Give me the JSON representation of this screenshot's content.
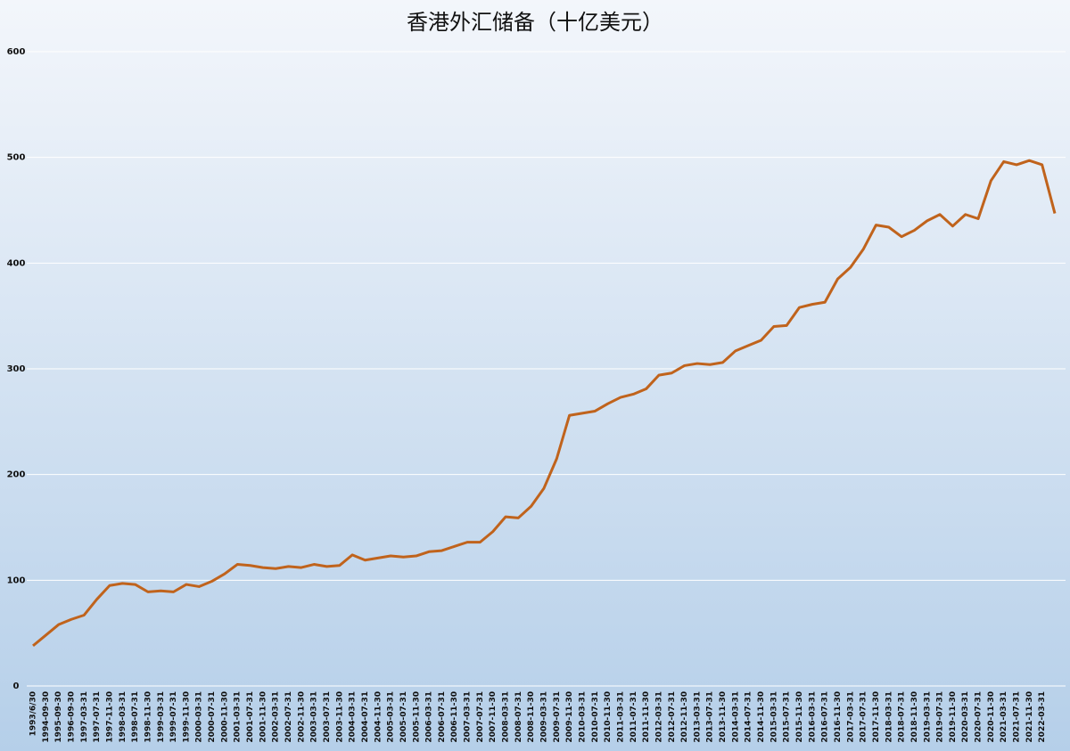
{
  "chart_data": {
    "type": "line",
    "title": "香港外汇储备（十亿美元）",
    "categories": [
      "1993/6/30",
      "1994-09-30",
      "1995-09-30",
      "1996-09-30",
      "1997-03-31",
      "1997-07-31",
      "1997-11-30",
      "1998-03-31",
      "1998-07-31",
      "1998-11-30",
      "1999-03-31",
      "1999-07-31",
      "1999-11-30",
      "2000-03-31",
      "2000-07-31",
      "2000-11-30",
      "2001-03-31",
      "2001-07-31",
      "2001-11-30",
      "2002-03-31",
      "2002-07-31",
      "2002-11-30",
      "2003-03-31",
      "2003-07-31",
      "2003-11-30",
      "2004-03-31",
      "2004-07-31",
      "2004-11-30",
      "2005-03-31",
      "2005-07-31",
      "2005-11-30",
      "2006-03-31",
      "2006-07-31",
      "2006-11-30",
      "2007-03-31",
      "2007-07-31",
      "2007-11-30",
      "2008-03-31",
      "2008-07-31",
      "2008-11-30",
      "2009-03-31",
      "2009-07-31",
      "2009-11-30",
      "2010-03-31",
      "2010-07-31",
      "2010-11-30",
      "2011-03-31",
      "2011-07-31",
      "2011-11-30",
      "2012-03-31",
      "2012-07-31",
      "2012-11-30",
      "2013-03-31",
      "2013-07-31",
      "2013-11-30",
      "2014-03-31",
      "2014-07-31",
      "2014-11-30",
      "2015-03-31",
      "2015-07-31",
      "2015-11-30",
      "2016-03-31",
      "2016-07-31",
      "2016-11-30",
      "2017-03-31",
      "2017-07-31",
      "2017-11-30",
      "2018-03-31",
      "2018-07-31",
      "2018-11-30",
      "2019-03-31",
      "2019-07-31",
      "2019-11-30",
      "2020-03-31",
      "2020-07-31",
      "2020-11-30",
      "2021-03-31",
      "2021-07-31",
      "2021-11-30",
      "2022-03-31",
      null
    ],
    "series": [
      {
        "color": "#c0631c",
        "values": [
          38,
          48,
          58,
          63,
          67,
          82,
          95,
          97,
          96,
          89,
          90,
          89,
          96,
          94,
          99,
          106,
          115,
          114,
          112,
          111,
          113,
          112,
          115,
          113,
          114,
          124,
          119,
          121,
          123,
          122,
          123,
          127,
          128,
          132,
          136,
          136,
          146,
          160,
          159,
          170,
          187,
          215,
          256,
          258,
          260,
          267,
          273,
          276,
          281,
          294,
          296,
          303,
          305,
          304,
          306,
          317,
          322,
          327,
          340,
          341,
          358,
          361,
          363,
          385,
          396,
          413,
          436,
          434,
          425,
          431,
          440,
          446,
          435,
          446,
          442,
          478,
          496,
          493,
          497,
          493,
          447
        ]
      }
    ],
    "ylim": [
      0,
      600
    ],
    "yticks": [
      0,
      100,
      200,
      300,
      400,
      500,
      600
    ],
    "grid": true
  }
}
